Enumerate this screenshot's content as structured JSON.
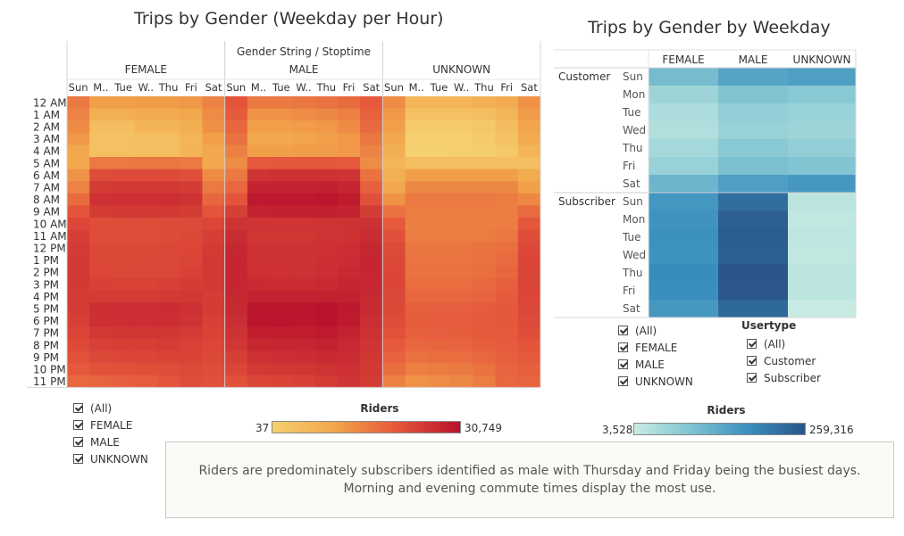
{
  "left_title": "Trips by Gender (Weekday per Hour)",
  "right_title": "Trips by Gender by Weekday",
  "left_filter": {
    "items": [
      "(All)",
      "FEMALE",
      "MALE",
      "UNKNOWN"
    ]
  },
  "right_filter": {
    "items": [
      "(All)",
      "FEMALE",
      "MALE",
      "UNKNOWN"
    ]
  },
  "usertype_filter": {
    "title": "Usertype",
    "items": [
      "(All)",
      "Customer",
      "Subscriber"
    ]
  },
  "left_legend": {
    "title": "Riders",
    "min": "37",
    "max": "30,749",
    "colors": [
      "#f5d06f",
      "#f2a54a",
      "#e5563b",
      "#b8122d"
    ]
  },
  "right_legend": {
    "title": "Riders",
    "min": "3,528",
    "max": "259,316",
    "colors": [
      "#c7ebe2",
      "#7fc3d1",
      "#3a8fbe",
      "#2a5588"
    ]
  },
  "note": {
    "line1": "Riders are predominately subscribers identified as male with Thursday and Friday being the busiest days.",
    "line2": "Morning and evening commute times display the most use."
  },
  "chart_data": [
    {
      "type": "heatmap",
      "title": "Trips by Gender (Weekday per Hour)",
      "column_header": "Gender String / Stoptime",
      "genders": [
        "FEMALE",
        "MALE",
        "UNKNOWN"
      ],
      "day_labels": [
        "Sun",
        "M..",
        "Tue",
        "W..",
        "Thu",
        "Fri",
        "Sat"
      ],
      "hours": [
        "12 AM",
        "1 AM",
        "2 AM",
        "3 AM",
        "4 AM",
        "5 AM",
        "6 AM",
        "7 AM",
        "8 AM",
        "9 AM",
        "10 AM",
        "11 AM",
        "12 PM",
        "1 PM",
        "2 PM",
        "3 PM",
        "4 PM",
        "5 PM",
        "6 PM",
        "7 PM",
        "8 PM",
        "9 PM",
        "10 PM",
        "11 PM"
      ],
      "value_range": [
        37,
        30749
      ],
      "values": {
        "FEMALE": [
          [
            1200,
            400,
            400,
            450,
            450,
            500,
            900
          ],
          [
            900,
            200,
            200,
            250,
            250,
            300,
            700
          ],
          [
            700,
            100,
            100,
            150,
            150,
            200,
            600
          ],
          [
            500,
            80,
            80,
            100,
            100,
            150,
            400
          ],
          [
            300,
            80,
            80,
            100,
            100,
            150,
            300
          ],
          [
            300,
            1200,
            1200,
            1300,
            1300,
            1200,
            300
          ],
          [
            600,
            4500,
            4800,
            4800,
            4700,
            4300,
            700
          ],
          [
            900,
            8000,
            8500,
            8500,
            8400,
            7500,
            1200
          ],
          [
            1800,
            11000,
            11500,
            11500,
            11800,
            10500,
            2000
          ],
          [
            3500,
            8000,
            8200,
            8200,
            8100,
            7500,
            3500
          ],
          [
            5500,
            4500,
            4500,
            4500,
            4600,
            4800,
            5500
          ],
          [
            7000,
            4500,
            4500,
            4500,
            4600,
            5000,
            7000
          ],
          [
            8000,
            5000,
            5000,
            5000,
            5200,
            5500,
            8000
          ],
          [
            8500,
            5000,
            5000,
            5000,
            5300,
            5800,
            8500
          ],
          [
            8500,
            5500,
            5200,
            5300,
            5600,
            6500,
            8500
          ],
          [
            8500,
            6500,
            6300,
            6300,
            6700,
            7500,
            8200
          ],
          [
            8000,
            8000,
            8000,
            8000,
            8300,
            8800,
            7800
          ],
          [
            7500,
            11500,
            12000,
            12000,
            12500,
            11000,
            7500
          ],
          [
            6800,
            11500,
            12000,
            11800,
            12200,
            10000,
            6800
          ],
          [
            5800,
            8500,
            9000,
            9000,
            9500,
            8000,
            6000
          ],
          [
            4800,
            6500,
            7000,
            7000,
            7500,
            6500,
            5500
          ],
          [
            3800,
            5000,
            5500,
            5500,
            6000,
            6000,
            5000
          ],
          [
            3000,
            3800,
            4000,
            4200,
            4500,
            5000,
            4500
          ],
          [
            2000,
            2200,
            2600,
            2800,
            3500,
            4500,
            4000
          ]
        ],
        "MALE": [
          [
            3500,
            1200,
            1200,
            1300,
            1500,
            1800,
            3000
          ],
          [
            2800,
            600,
            600,
            700,
            800,
            1000,
            2400
          ],
          [
            2000,
            400,
            400,
            450,
            500,
            700,
            1800
          ],
          [
            1500,
            300,
            300,
            350,
            400,
            500,
            1300
          ],
          [
            1000,
            400,
            400,
            450,
            450,
            500,
            900
          ],
          [
            700,
            3000,
            3200,
            3200,
            3200,
            3000,
            700
          ],
          [
            1200,
            10000,
            11000,
            11000,
            11000,
            10000,
            1500
          ],
          [
            2000,
            17000,
            18000,
            18000,
            18500,
            16500,
            2500
          ],
          [
            3500,
            24000,
            25000,
            25000,
            27000,
            23000,
            4000
          ],
          [
            7000,
            18000,
            19000,
            19000,
            19500,
            17500,
            7500
          ],
          [
            10500,
            10000,
            10000,
            10000,
            10500,
            10500,
            11000
          ],
          [
            13000,
            9500,
            9500,
            9500,
            10000,
            10500,
            13000
          ],
          [
            15000,
            10500,
            10500,
            10500,
            11000,
            12000,
            15000
          ],
          [
            16000,
            10500,
            10500,
            10500,
            11500,
            12500,
            16000
          ],
          [
            16000,
            11500,
            11000,
            11200,
            12000,
            14000,
            16000
          ],
          [
            16000,
            13500,
            13000,
            13000,
            14000,
            16000,
            15500
          ],
          [
            15000,
            17500,
            17500,
            17500,
            18500,
            18000,
            14500
          ],
          [
            14000,
            26500,
            27000,
            26000,
            29500,
            24000,
            14000
          ],
          [
            12500,
            27000,
            27500,
            26500,
            30749,
            22500,
            12500
          ],
          [
            10500,
            20000,
            21000,
            21000,
            23000,
            18000,
            11000
          ],
          [
            9000,
            15000,
            16000,
            16000,
            17500,
            14500,
            10000
          ],
          [
            7000,
            11000,
            12000,
            12500,
            13500,
            12500,
            9000
          ],
          [
            5500,
            8500,
            9000,
            9500,
            10500,
            11000,
            8500
          ],
          [
            4000,
            5500,
            6000,
            6500,
            8000,
            10000,
            8000
          ]
        ],
        "UNKNOWN": [
          [
            700,
            150,
            150,
            150,
            200,
            250,
            600
          ],
          [
            500,
            80,
            80,
            80,
            100,
            150,
            450
          ],
          [
            400,
            50,
            50,
            50,
            60,
            100,
            350
          ],
          [
            300,
            40,
            40,
            40,
            50,
            80,
            250
          ],
          [
            200,
            37,
            37,
            40,
            40,
            60,
            150
          ],
          [
            150,
            100,
            100,
            100,
            100,
            100,
            100
          ],
          [
            200,
            400,
            400,
            400,
            400,
            400,
            250
          ],
          [
            300,
            800,
            800,
            800,
            800,
            800,
            400
          ],
          [
            600,
            1200,
            1200,
            1200,
            1200,
            1100,
            800
          ],
          [
            1500,
            1100,
            1100,
            1100,
            1100,
            1100,
            1800
          ],
          [
            3000,
            1000,
            1000,
            1000,
            1000,
            1100,
            3200
          ],
          [
            4000,
            1100,
            1100,
            1100,
            1100,
            1300,
            4200
          ],
          [
            4800,
            1300,
            1300,
            1300,
            1400,
            1600,
            5000
          ],
          [
            5200,
            1400,
            1400,
            1400,
            1500,
            1800,
            5500
          ],
          [
            5500,
            1500,
            1500,
            1500,
            1600,
            2100,
            5800
          ],
          [
            5500,
            1700,
            1700,
            1700,
            1900,
            2500,
            5800
          ],
          [
            5300,
            2000,
            2000,
            2000,
            2200,
            2800,
            5500
          ],
          [
            5000,
            2500,
            2600,
            2600,
            2800,
            3100,
            5200
          ],
          [
            4500,
            2700,
            2800,
            2800,
            3000,
            3200,
            4800
          ],
          [
            3800,
            2500,
            2600,
            2700,
            2900,
            3000,
            4200
          ],
          [
            3000,
            2000,
            2100,
            2200,
            2500,
            2800,
            3500
          ],
          [
            2300,
            1500,
            1600,
            1700,
            2000,
            2500,
            3000
          ],
          [
            1600,
            1000,
            1100,
            1200,
            1500,
            2200,
            2500
          ],
          [
            1000,
            600,
            700,
            800,
            1100,
            2000,
            2200
          ]
        ]
      }
    },
    {
      "type": "heatmap",
      "title": "Trips by Gender by Weekday",
      "columns": [
        "FEMALE",
        "MALE",
        "UNKNOWN"
      ],
      "groups": [
        {
          "name": "Customer",
          "days": [
            "Sun",
            "Mon",
            "Tue",
            "Wed",
            "Thu",
            "Fri",
            "Sat"
          ],
          "values": [
            [
              18000,
              35000,
              40000
            ],
            [
              8000,
              14000,
              12000
            ],
            [
              6000,
              10000,
              9000
            ],
            [
              5500,
              9000,
              8000
            ],
            [
              7000,
              12000,
              10000
            ],
            [
              9000,
              16000,
              14000
            ],
            [
              22000,
              40000,
              48000
            ]
          ]
        },
        {
          "name": "Subscriber",
          "days": [
            "Sun",
            "Mon",
            "Tue",
            "Wed",
            "Thu",
            "Fri",
            "Sat"
          ],
          "values": [
            [
              50000,
              140000,
              4500
            ],
            [
              55000,
              205000,
              4000
            ],
            [
              58000,
              215000,
              4200
            ],
            [
              56000,
              200000,
              4000
            ],
            [
              65000,
              259316,
              4400
            ],
            [
              62000,
              245000,
              4300
            ],
            [
              48000,
              160000,
              3528
            ]
          ]
        }
      ],
      "value_range": [
        3528,
        259316
      ]
    }
  ]
}
